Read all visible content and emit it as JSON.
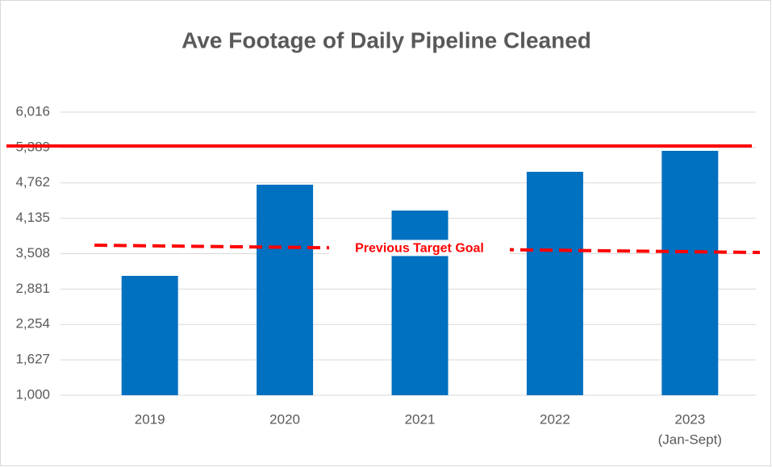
{
  "chart_data": {
    "type": "bar",
    "title": "Ave Footage of Daily Pipeline Cleaned",
    "categories": [
      "2019",
      "2020",
      "2021",
      "2022",
      [
        "2023",
        "(Jan-Sept)"
      ]
    ],
    "values": [
      3115,
      4730,
      4272,
      4958,
      5330
    ],
    "color": "#0070c0",
    "ylim": [
      1000,
      6016
    ],
    "yticks": [
      {
        "value": 1000,
        "label": "1,000"
      },
      {
        "value": 1627,
        "label": "1,627"
      },
      {
        "value": 2254,
        "label": "2,254"
      },
      {
        "value": 2881,
        "label": "2,881"
      },
      {
        "value": 3508,
        "label": "3,508"
      },
      {
        "value": 4135,
        "label": "4,135"
      },
      {
        "value": 4762,
        "label": "4,762"
      },
      {
        "value": 5389,
        "label": "5,389"
      },
      {
        "value": 6016,
        "label": "6,016"
      }
    ],
    "grid": true,
    "reference_lines": [
      {
        "values": [
          5416,
          5416
        ],
        "color": "#ff0000",
        "style": "solid"
      },
      {
        "values": [
          3658,
          3529
        ],
        "color": "#ff0000",
        "style": "dashed",
        "label": "Previous Target Goal"
      }
    ]
  }
}
